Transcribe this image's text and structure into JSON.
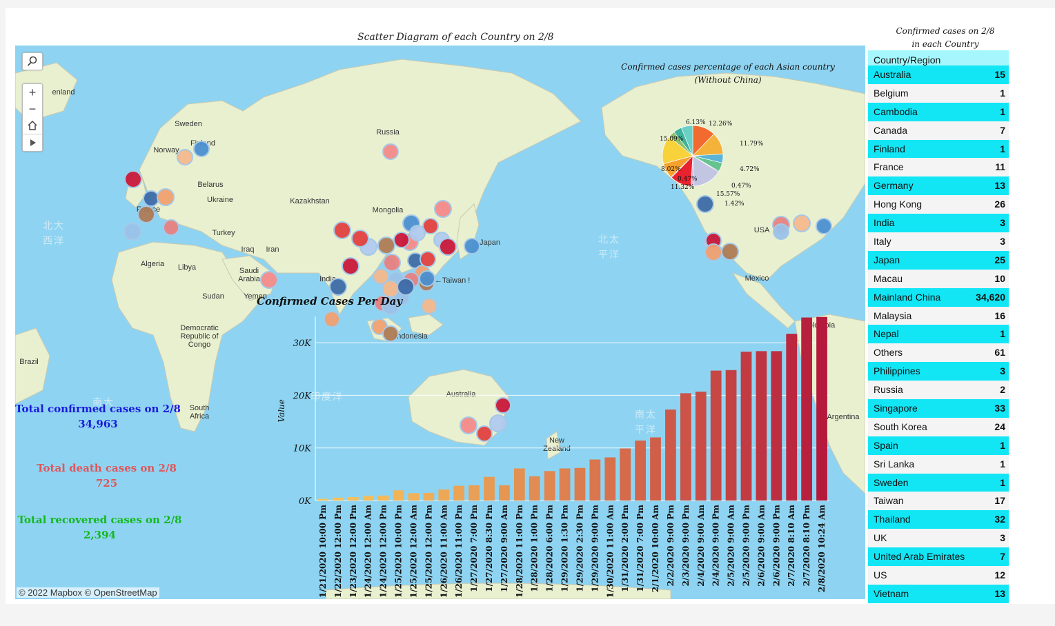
{
  "map": {
    "title": "Scatter Diagram of each Country on 2/8",
    "attribution": "© 2022 Mapbox © OpenStreetMap",
    "labels": [
      "enland",
      "Sweden",
      "Finland",
      "Norway",
      "Russia",
      "Belarus",
      "Ukraine",
      "France",
      "Kazakhstan",
      "Mongolia",
      "Turkey",
      "Iraq",
      "Iran",
      "Algeria",
      "Libya",
      "Saudi Arabia",
      "Yemen",
      "India",
      "Sudan",
      "Japan",
      "Democratic Republic of Congo",
      "Brazil",
      "South Africa",
      "Indonesia",
      "Australia",
      "New Zealand",
      "USA",
      "Mexico",
      "Colombia",
      "Argentina"
    ],
    "oceans": [
      "北大西洋",
      "北太平洋",
      "印度洋",
      "南太平洋",
      "南大"
    ],
    "taiwan_label": "←Taiwan !",
    "controls": [
      "search-icon",
      "zoom-in-icon",
      "zoom-out-icon",
      "home-icon",
      "play-icon"
    ],
    "colors": {
      "water": "#8ed4f2",
      "land": "#e9f0d0"
    }
  },
  "totals": {
    "confirmed_label": "Total confirmed cases on 2/8",
    "confirmed_value": "34,963",
    "confirmed_color": "#1a1adb",
    "death_label": "Total death cases on 2/8",
    "death_value": "725",
    "death_color": "#e0555a",
    "recovered_label": "Total recovered cases on 2/8",
    "recovered_value": "2,394",
    "recovered_color": "#14b81e"
  },
  "chart_data": [
    {
      "type": "pie",
      "title": "Confirmed cases percentage of each Asian country (Without China)",
      "slices": [
        {
          "label": "12.26%",
          "value": 12.26,
          "color": "#f26a2e"
        },
        {
          "label": "11.79%",
          "value": 11.79,
          "color": "#f4b23a"
        },
        {
          "label": "4.72%",
          "value": 4.72,
          "color": "#5ab4d6"
        },
        {
          "label": "",
          "value": 4.7,
          "color": "#66c28e"
        },
        {
          "label": "0.47%",
          "value": 0.47,
          "color": "#7a5ca6"
        },
        {
          "label": "15.57%",
          "value": 15.57,
          "color": "#c3c6e3"
        },
        {
          "label": "1.42%",
          "value": 1.42,
          "color": "#e0b4cf"
        },
        {
          "label": "11.32%",
          "value": 11.32,
          "color": "#e8222e"
        },
        {
          "label": "0.47%",
          "value": 0.47,
          "color": "#aa2e4a"
        },
        {
          "label": "8.02%",
          "value": 8.02,
          "color": "#f6a12e"
        },
        {
          "label": "15.09%",
          "value": 15.09,
          "color": "#f7d23a"
        },
        {
          "label": "",
          "value": 3.5,
          "color": "#8fbf6a"
        },
        {
          "label": "",
          "value": 4.5,
          "color": "#3fb39a"
        },
        {
          "label": "6.13%",
          "value": 6.13,
          "color": "#6ad0c6"
        }
      ]
    },
    {
      "type": "bar",
      "title": "Confirmed Cases Per Day",
      "xlabel": "",
      "ylabel": "Value",
      "ylim": [
        0,
        35000
      ],
      "yticks": [
        0,
        10000,
        20000,
        30000
      ],
      "ytick_labels": [
        "0K",
        "10K",
        "20K",
        "30K"
      ],
      "grid": true,
      "categories": [
        "1/21/2020 10:00 Pm",
        "1/22/2020 12:00 Pm",
        "1/23/2020 12:00 Pm",
        "1/24/2020 12:00 Am",
        "1/24/2020 12:00 Pm",
        "1/25/2020 10:00 Pm",
        "1/25/2020 12:00 Am",
        "1/25/2020 12:00 Pm",
        "1/26/2020 11:00 Am",
        "1/26/2020 11:00 Pm",
        "1/27/2020 7:00 Pm",
        "1/27/2020 8:30 Pm",
        "1/27/2020 9:00 Am",
        "1/28/2020 11:00 Pm",
        "1/28/2020 1:00 Pm",
        "1/28/2020 6:00 Pm",
        "1/29/2020 1:30 Pm",
        "1/29/2020 2:30 Pm",
        "1/29/2020 9:00 Pm",
        "1/30/2020 11:00 Am",
        "1/31/2020 2:00 Pm",
        "1/31/2020 7:00 Pm",
        "2/1/2020 10:00 Am",
        "2/2/2020 9:00 Pm",
        "2/3/2020 9:00 Pm",
        "2/4/2020 9:00 Am",
        "2/4/2020 9:00 Pm",
        "2/5/2020 9:00 Am",
        "2/5/2020 9:00 Pm",
        "2/6/2020 9:00 Am",
        "2/6/2020 9:00 Pm",
        "2/7/2020 8:10 Am",
        "2/7/2020 8:10 Pm",
        "2/8/2020 10:24 Am"
      ],
      "values": [
        330,
        550,
        650,
        900,
        950,
        1950,
        1400,
        1450,
        2100,
        2800,
        2900,
        4500,
        2900,
        6100,
        4600,
        5600,
        6100,
        6200,
        7800,
        8200,
        9900,
        11400,
        12000,
        17300,
        20400,
        20700,
        24700,
        24800,
        28300,
        28400,
        28400,
        31700,
        34800,
        34900
      ],
      "colors_from": "#f7c35c",
      "colors_to": "#b51a3c"
    }
  ],
  "table": {
    "title_line1": "Confirmed cases on 2/8",
    "title_line2": "in each Country",
    "header": "Country/Region",
    "rows": [
      {
        "country": "Australia",
        "value": "15"
      },
      {
        "country": "Belgium",
        "value": "1"
      },
      {
        "country": "Cambodia",
        "value": "1"
      },
      {
        "country": "Canada",
        "value": "7"
      },
      {
        "country": "Finland",
        "value": "1"
      },
      {
        "country": "France",
        "value": "11"
      },
      {
        "country": "Germany",
        "value": "13"
      },
      {
        "country": "Hong Kong",
        "value": "26"
      },
      {
        "country": "India",
        "value": "3"
      },
      {
        "country": "Italy",
        "value": "3"
      },
      {
        "country": "Japan",
        "value": "25"
      },
      {
        "country": "Macau",
        "value": "10"
      },
      {
        "country": "Mainland China",
        "value": "34,620"
      },
      {
        "country": "Malaysia",
        "value": "16"
      },
      {
        "country": "Nepal",
        "value": "1"
      },
      {
        "country": "Others",
        "value": "61"
      },
      {
        "country": "Philippines",
        "value": "3"
      },
      {
        "country": "Russia",
        "value": "2"
      },
      {
        "country": "Singapore",
        "value": "33"
      },
      {
        "country": "South Korea",
        "value": "24"
      },
      {
        "country": "Spain",
        "value": "1"
      },
      {
        "country": "Sri Lanka",
        "value": "1"
      },
      {
        "country": "Sweden",
        "value": "1"
      },
      {
        "country": "Taiwan",
        "value": "17"
      },
      {
        "country": "Thailand",
        "value": "32"
      },
      {
        "country": "UK",
        "value": "3"
      },
      {
        "country": "United Arab Emirates",
        "value": "7"
      },
      {
        "country": "US",
        "value": "12"
      },
      {
        "country": "Vietnam",
        "value": "13"
      }
    ]
  }
}
